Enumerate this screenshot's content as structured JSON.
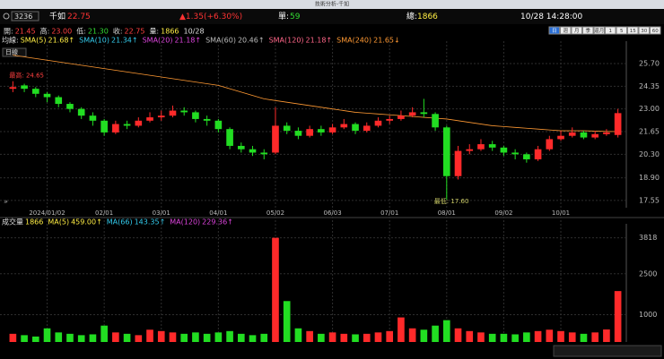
{
  "window_title": "技術分析-千如",
  "header": {
    "symbol": "3236",
    "name": "千如",
    "price": "22.75",
    "change": "▲1.35(+6.30%)",
    "unit_label": "單:",
    "unit": "59",
    "total_label": "總:",
    "total": "1866",
    "datetime": "10/28 14:28:00"
  },
  "period_buttons": [
    "日",
    "週",
    "月",
    "季",
    "還月",
    "1",
    "5",
    "15",
    "30",
    "60"
  ],
  "period_select": "日線",
  "info_bar": {
    "items": [
      {
        "label": "開:",
        "value": "21.45",
        "color": "#ff4040"
      },
      {
        "label": "高:",
        "value": "23.00",
        "color": "#ff4040"
      },
      {
        "label": "低:",
        "value": "21.30",
        "color": "#33dd33"
      },
      {
        "label": "收:",
        "value": "22.75",
        "color": "#ff4040"
      },
      {
        "label": "量:",
        "value": "1866",
        "color": "#ffee44"
      }
    ],
    "date": "10/28"
  },
  "ma_legend": {
    "title": "均線:",
    "items": [
      {
        "name": "SMA(5)",
        "value": "21.68↑",
        "color": "#ffee44"
      },
      {
        "name": "SMA(10)",
        "value": "21.34↑",
        "color": "#33ccee"
      },
      {
        "name": "SMA(20)",
        "value": "21.18↑",
        "color": "#dd44dd"
      },
      {
        "name": "SMA(60)",
        "value": "20.46↑",
        "color": "#bbbbbb"
      },
      {
        "name": "SMA(120)",
        "value": "21.18↑",
        "color": "#ff6688"
      },
      {
        "name": "SMA(240)",
        "value": "21.65↓",
        "color": "#ff9933"
      }
    ]
  },
  "volume_legend": {
    "title": "成交量",
    "value": "1866",
    "items": [
      {
        "name": "MA(5)",
        "value": "459.00↑",
        "color": "#ffee44"
      },
      {
        "name": "MA(66)",
        "value": "143.35↑",
        "color": "#33ccee"
      },
      {
        "name": "MA(120)",
        "value": "229.36↑",
        "color": "#dd44dd"
      }
    ]
  },
  "chart_data": [
    {
      "type": "candlestick",
      "categories": [
        null,
        null,
        null,
        "2024/01/02",
        null,
        null,
        null,
        null,
        "02/01",
        null,
        null,
        null,
        null,
        "03/01",
        null,
        null,
        null,
        null,
        "04/01",
        null,
        null,
        null,
        null,
        "05/02",
        null,
        null,
        null,
        null,
        "06/03",
        null,
        null,
        null,
        null,
        "07/01",
        null,
        null,
        null,
        null,
        "08/01",
        null,
        null,
        null,
        null,
        "09/02",
        null,
        null,
        null,
        null,
        "10/01",
        null,
        null,
        null,
        null,
        null
      ],
      "open": [
        24.2,
        24.4,
        24.2,
        23.9,
        23.7,
        23.3,
        23.0,
        22.6,
        22.3,
        21.6,
        22.1,
        22.0,
        22.3,
        22.5,
        22.6,
        22.9,
        22.8,
        22.4,
        22.3,
        21.8,
        20.8,
        20.6,
        20.4,
        20.4,
        22.0,
        21.7,
        21.4,
        21.8,
        21.6,
        21.9,
        22.1,
        21.7,
        22.0,
        22.3,
        22.4,
        22.6,
        22.8,
        22.7,
        21.9,
        19.0,
        20.5,
        20.6,
        20.9,
        20.7,
        20.4,
        20.3,
        20.0,
        20.6,
        21.2,
        21.4,
        21.6,
        21.3,
        21.5,
        21.45
      ],
      "high": [
        24.65,
        24.5,
        24.3,
        24.0,
        23.8,
        23.4,
        23.1,
        22.8,
        22.4,
        22.3,
        22.3,
        22.5,
        22.8,
        22.9,
        23.2,
        23.1,
        22.9,
        22.6,
        22.4,
        21.9,
        21.0,
        20.8,
        20.6,
        23.1,
        22.2,
        21.9,
        22.0,
        22.0,
        22.1,
        22.4,
        22.2,
        22.2,
        22.5,
        22.6,
        22.9,
        23.1,
        23.6,
        22.8,
        22.0,
        20.8,
        20.9,
        21.2,
        21.1,
        20.8,
        20.6,
        20.4,
        20.8,
        21.4,
        21.7,
        21.9,
        21.7,
        21.7,
        21.8,
        23.0
      ],
      "low": [
        24.0,
        24.0,
        23.7,
        23.4,
        23.1,
        22.8,
        22.4,
        22.0,
        21.4,
        21.5,
        21.8,
        21.9,
        22.2,
        22.3,
        22.5,
        22.6,
        22.2,
        22.0,
        21.6,
        20.6,
        20.4,
        20.2,
        20.0,
        20.3,
        21.5,
        21.2,
        21.3,
        21.4,
        21.5,
        21.8,
        21.5,
        21.6,
        21.9,
        22.1,
        22.3,
        22.5,
        22.5,
        21.7,
        17.6,
        18.8,
        20.3,
        20.5,
        20.5,
        20.2,
        20.0,
        19.8,
        19.9,
        20.5,
        21.1,
        21.3,
        21.2,
        21.2,
        21.4,
        21.3
      ],
      "close": [
        24.3,
        24.2,
        23.9,
        23.7,
        23.3,
        23.0,
        22.6,
        22.3,
        21.6,
        22.1,
        22.0,
        22.3,
        22.5,
        22.6,
        22.9,
        22.8,
        22.4,
        22.3,
        21.8,
        20.8,
        20.6,
        20.4,
        20.3,
        22.0,
        21.7,
        21.4,
        21.8,
        21.6,
        21.9,
        22.1,
        21.7,
        22.0,
        22.3,
        22.4,
        22.6,
        22.8,
        22.7,
        21.9,
        19.0,
        20.5,
        20.6,
        20.9,
        20.7,
        20.4,
        20.3,
        20.0,
        20.6,
        21.2,
        21.4,
        21.6,
        21.3,
        21.5,
        21.6,
        22.75
      ],
      "series": [
        {
          "color": "#ff9933",
          "values": [
            26.2,
            26.1,
            26.0,
            25.9,
            25.8,
            25.7,
            25.6,
            25.5,
            25.4,
            25.3,
            25.2,
            25.1,
            25.0,
            24.9,
            24.8,
            24.7,
            24.6,
            24.5,
            24.4,
            24.2,
            24.0,
            23.8,
            23.6,
            23.5,
            23.4,
            23.3,
            23.2,
            23.1,
            23.0,
            22.9,
            22.8,
            22.75,
            22.7,
            22.65,
            22.6,
            22.55,
            22.5,
            22.45,
            22.4,
            22.3,
            22.2,
            22.1,
            22.0,
            21.95,
            21.9,
            21.85,
            21.8,
            21.75,
            21.7,
            21.7,
            21.7,
            21.68,
            21.66,
            21.65
          ]
        }
      ],
      "annotations": [
        "最高: 24.65",
        "最低: 17.60"
      ],
      "up_color": "#ff2a2a",
      "down_color": "#22dd22",
      "ylim": [
        17.12,
        26.82
      ],
      "yticks": [
        17.55,
        {
          "value": 18.9,
          "label": "18.90"
        },
        {
          "value": 20.3,
          "label": "20.30"
        },
        {
          "value": 21.65,
          "label": "21.65"
        },
        {
          "value": 23,
          "label": "23.00"
        },
        {
          "value": 24.35,
          "label": "24.35"
        },
        {
          "value": 25.7,
          "label": "25.70"
        }
      ],
      "grid": true
    },
    {
      "type": "volume",
      "values": [
        300,
        250,
        200,
        500,
        350,
        300,
        250,
        280,
        600,
        350,
        300,
        250,
        450,
        400,
        350,
        300,
        350,
        300,
        350,
        400,
        300,
        250,
        300,
        3818,
        1500,
        500,
        400,
        300,
        350,
        300,
        280,
        300,
        350,
        400,
        900,
        500,
        450,
        600,
        800,
        500,
        400,
        350,
        300,
        300,
        280,
        350,
        400,
        450,
        400,
        350,
        300,
        350,
        459,
        1866
      ],
      "ylim": [
        0,
        4200
      ],
      "yticks": [
        1000,
        2500,
        3818
      ],
      "grid": true
    }
  ]
}
